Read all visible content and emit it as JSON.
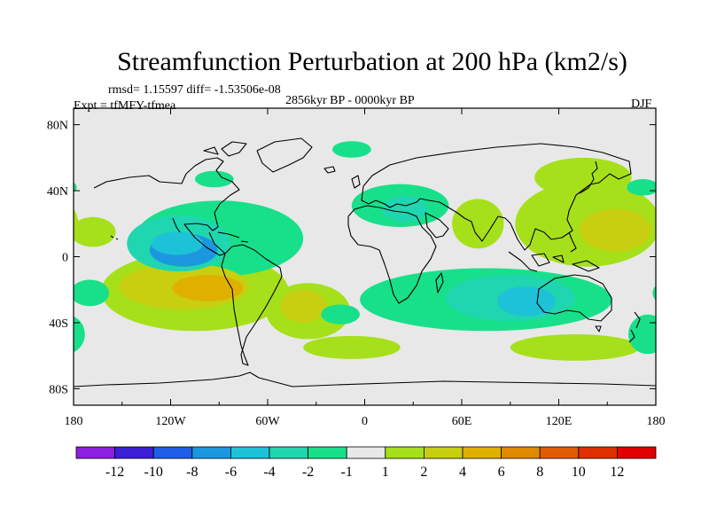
{
  "chart_data": {
    "type": "heatmap",
    "title": "Streamfunction Perturbation at 200 hPa (km2/s)",
    "stats_text": "rmsd= 1.15597 diff= -1.53506e-08",
    "experiment_text": "Expt = tfMFY-tfmea",
    "period_text": "2856kyr BP - 0000kyr BP",
    "season_text": "DJF",
    "x_ticks": [
      "180",
      "120W",
      "60W",
      "0",
      "60E",
      "120E",
      "180"
    ],
    "x_tick_values": [
      -180,
      -120,
      -60,
      0,
      60,
      120,
      180
    ],
    "y_ticks": [
      "80N",
      "40N",
      "0",
      "40S",
      "80S"
    ],
    "y_tick_values": [
      80,
      40,
      0,
      -40,
      -80
    ],
    "xlim": [
      -180,
      180
    ],
    "ylim": [
      -90,
      90
    ],
    "colorbar_labels": [
      "-12",
      "-10",
      "-8",
      "-6",
      "-4",
      "-2",
      "-1",
      "1",
      "2",
      "4",
      "6",
      "8",
      "10",
      "12"
    ],
    "colorbar_colors": [
      "#8c1fe0",
      "#3a1fd6",
      "#1e5ee8",
      "#1b97e0",
      "#1ec2d8",
      "#20d6b0",
      "#18e08a",
      "#e8e8e8",
      "#a6e01a",
      "#c8cf10",
      "#e0b000",
      "#e08a00",
      "#e05c00",
      "#e03000",
      "#e00000"
    ],
    "features": [
      {
        "label": "-6",
        "lon": -112,
        "lat": 4,
        "rx": 21,
        "ry": 10,
        "kind": "min"
      },
      {
        "label": "-4",
        "lon": -116,
        "lat": 8,
        "rx": 16,
        "ry": 7,
        "kind": "min"
      },
      {
        "label": "-2",
        "lon": -115,
        "lat": 8,
        "rx": 32,
        "ry": 17,
        "kind": "min"
      },
      {
        "label": "-1",
        "lon": -90,
        "lat": 11,
        "rx": 52,
        "ry": 23,
        "kind": "min"
      },
      {
        "label": "4",
        "lon": -97,
        "lat": -19,
        "rx": 22,
        "ry": 8,
        "kind": "max"
      },
      {
        "label": "2",
        "lon": -112,
        "lat": -18,
        "rx": 40,
        "ry": 14,
        "kind": "max"
      },
      {
        "label": "1",
        "lon": -105,
        "lat": -21,
        "rx": 58,
        "ry": 24,
        "kind": "max"
      },
      {
        "label": "2",
        "lon": -38,
        "lat": -30,
        "rx": 14,
        "ry": 10,
        "kind": "max"
      },
      {
        "label": "1",
        "lon": -35,
        "lat": -33,
        "rx": 26,
        "ry": 17,
        "kind": "max"
      },
      {
        "label": "1",
        "lon": -8,
        "lat": -55,
        "rx": 30,
        "ry": 7,
        "kind": "max"
      },
      {
        "label": "2",
        "lon": 155,
        "lat": 16,
        "rx": 22,
        "ry": 13,
        "kind": "max"
      },
      {
        "label": "1",
        "lon": 138,
        "lat": 20,
        "rx": 45,
        "ry": 26,
        "kind": "max"
      },
      {
        "label": "1",
        "lon": 135,
        "lat": 48,
        "rx": 30,
        "ry": 12,
        "kind": "max"
      },
      {
        "label": "1",
        "lon": 70,
        "lat": 20,
        "rx": 16,
        "ry": 15,
        "kind": "max"
      },
      {
        "label": "1",
        "lon": 130,
        "lat": -55,
        "rx": 40,
        "ry": 8,
        "kind": "max"
      },
      {
        "label": "1",
        "lon": -168,
        "lat": 15,
        "rx": 14,
        "ry": 9,
        "kind": "max"
      },
      {
        "label": "-4",
        "lon": 100,
        "lat": -27,
        "rx": 18,
        "ry": 9,
        "kind": "min"
      },
      {
        "label": "-2",
        "lon": 90,
        "lat": -25,
        "rx": 40,
        "ry": 14,
        "kind": "min"
      },
      {
        "label": "-1",
        "lon": 75,
        "lat": -26,
        "rx": 78,
        "ry": 19,
        "kind": "min"
      },
      {
        "label": "-2",
        "lon": 25,
        "lat": 29,
        "rx": 14,
        "ry": 8,
        "kind": "min"
      },
      {
        "label": "-1",
        "lon": 22,
        "lat": 31,
        "rx": 30,
        "ry": 13,
        "kind": "min"
      },
      {
        "label": "-1",
        "lon": -170,
        "lat": -22,
        "rx": 12,
        "ry": 8,
        "kind": "min"
      },
      {
        "label": "-1",
        "lon": 175,
        "lat": -47,
        "rx": 12,
        "ry": 12,
        "kind": "min"
      },
      {
        "label": "-1",
        "lon": -8,
        "lat": 65,
        "rx": 12,
        "ry": 5,
        "kind": "min"
      },
      {
        "label": "-1",
        "lon": -93,
        "lat": 47,
        "rx": 12,
        "ry": 5,
        "kind": "min"
      },
      {
        "label": "-1",
        "lon": 172,
        "lat": 42,
        "rx": 10,
        "ry": 5,
        "kind": "min"
      },
      {
        "label": "-1",
        "lon": -15,
        "lat": -35,
        "rx": 12,
        "ry": 6,
        "kind": "min"
      }
    ]
  }
}
